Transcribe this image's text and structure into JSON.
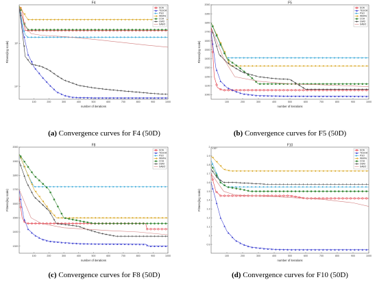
{
  "captions": [
    {
      "letter": "(a)",
      "text": " Convergence curves for F4 (50D)"
    },
    {
      "letter": "(b)",
      "text": " Convergence curves for F5 (50D)"
    },
    {
      "letter": "(c)",
      "text": " Convergence curves for F8 (50D)"
    },
    {
      "letter": "(d)",
      "text": " Convergence curves for F10 (50D)"
    }
  ],
  "legend_names": [
    "SOA",
    "TESOA",
    "PSO",
    "WMFA",
    "COA",
    "GWO",
    "SABO"
  ],
  "colors": {
    "SOA": "#e0303c",
    "TESOA": "#3a3fd0",
    "PSO": "#38a8d8",
    "WMFA": "#d8a41c",
    "COA": "#3a8a3a",
    "GWO": "#333333",
    "SABO": "#d07a7a"
  },
  "chart_data": [
    {
      "type": "line",
      "title": "F4",
      "xlabel": "number of iterations",
      "ylabel": "Fitness(log scale)",
      "xlim": [
        0,
        1000
      ],
      "yscale": "log",
      "ylim": [
        0.5,
        80
      ],
      "x_ticks": [
        100,
        200,
        300,
        400,
        500,
        600,
        700,
        800,
        900,
        1000
      ],
      "y_ticks": [
        {
          "v": 1,
          "label": "10⁰"
        },
        {
          "v": 10,
          "label": "10¹"
        }
      ],
      "series": [
        {
          "name": "SOA",
          "x": [
            0,
            20,
            40,
            1000
          ],
          "y": [
            75,
            60,
            20,
            20
          ]
        },
        {
          "name": "TESOA",
          "x": [
            0,
            30,
            60,
            100,
            150,
            200,
            250,
            300,
            350,
            400,
            500,
            600,
            700,
            800,
            900,
            1000
          ],
          "y": [
            70,
            16,
            5.5,
            2.8,
            1.7,
            1.1,
            0.75,
            0.62,
            0.56,
            0.55,
            0.54,
            0.54,
            0.54,
            0.54,
            0.54,
            0.54
          ]
        },
        {
          "name": "PSO",
          "x": [
            0,
            20,
            40,
            60,
            1000
          ],
          "y": [
            75,
            30,
            16,
            14,
            14
          ]
        },
        {
          "name": "WMFA",
          "x": [
            0,
            40,
            60,
            1000
          ],
          "y": [
            75,
            45,
            36,
            36
          ]
        },
        {
          "name": "COA",
          "x": [
            0,
            30,
            60,
            1000
          ],
          "y": [
            75,
            30,
            21,
            21
          ]
        },
        {
          "name": "GWO",
          "x": [
            0,
            20,
            40,
            80,
            150,
            200,
            250,
            300,
            400,
            500,
            600,
            700,
            800,
            900,
            1000
          ],
          "y": [
            70,
            20,
            5,
            3.3,
            2.9,
            2.4,
            1.8,
            1.4,
            1.05,
            0.92,
            0.84,
            0.78,
            0.73,
            0.68,
            0.65
          ]
        },
        {
          "name": "SABO",
          "x": [
            0,
            40,
            80,
            150,
            300,
            500,
            700,
            850,
            1000
          ],
          "y": [
            70,
            25,
            17,
            15.5,
            14.5,
            12.5,
            10.5,
            9.2,
            8.2
          ]
        }
      ]
    },
    {
      "type": "line",
      "title": "F5",
      "xlabel": "number of iterations",
      "ylabel": "Fitness(log scale)",
      "xlim": [
        0,
        1000
      ],
      "yscale": "linear",
      "ylim": [
        950,
        2000
      ],
      "x_ticks": [
        100,
        200,
        300,
        400,
        500,
        600,
        700,
        800,
        900,
        1000
      ],
      "y_ticks": [
        1000,
        1100,
        1200,
        1300,
        1400,
        1500,
        1600,
        1700,
        1800,
        1900,
        2000
      ],
      "series": [
        {
          "name": "SOA",
          "x": [
            0,
            20,
            40,
            60,
            80,
            1000
          ],
          "y": [
            1750,
            1200,
            1080,
            1060,
            1050,
            1050
          ]
        },
        {
          "name": "TESOA",
          "x": [
            0,
            30,
            60,
            100,
            150,
            200,
            300,
            500,
            700,
            1000
          ],
          "y": [
            1700,
            1300,
            1150,
            1080,
            1040,
            1010,
            990,
            985,
            983,
            982
          ]
        },
        {
          "name": "PSO",
          "x": [
            0,
            60,
            100,
            1000
          ],
          "y": [
            1800,
            1550,
            1410,
            1410
          ]
        },
        {
          "name": "WMFA",
          "x": [
            0,
            80,
            120,
            1000
          ],
          "y": [
            1800,
            1500,
            1320,
            1320
          ]
        },
        {
          "name": "COA",
          "x": [
            0,
            60,
            100,
            180,
            250,
            300,
            1000
          ],
          "y": [
            1800,
            1560,
            1400,
            1300,
            1200,
            1120,
            1120
          ]
        },
        {
          "name": "GWO",
          "x": [
            0,
            50,
            100,
            150,
            200,
            300,
            400,
            500,
            600,
            1000
          ],
          "y": [
            1750,
            1450,
            1360,
            1300,
            1250,
            1200,
            1180,
            1170,
            1060,
            1060
          ]
        },
        {
          "name": "SABO",
          "x": [
            0,
            80,
            150,
            300,
            500,
            700,
            1000
          ],
          "y": [
            1750,
            1400,
            1200,
            1150,
            1120,
            1110,
            1090
          ]
        }
      ]
    },
    {
      "type": "line",
      "title": "F8",
      "xlabel": "number of iterations",
      "ylabel": "Fitness(log scale)",
      "xlim": [
        0,
        1000
      ],
      "yscale": "linear",
      "ylim": [
        1250,
        2000
      ],
      "x_ticks": [
        100,
        200,
        300,
        400,
        500,
        600,
        700,
        800,
        900,
        1000
      ],
      "y_ticks": [
        1300,
        1400,
        1500,
        1600,
        1700,
        1800,
        1900,
        2000
      ],
      "series": [
        {
          "name": "SOA",
          "x": [
            0,
            20,
            40,
            60,
            850,
            860,
            1000
          ],
          "y": [
            1650,
            1500,
            1465,
            1460,
            1460,
            1420,
            1420
          ]
        },
        {
          "name": "TESOA",
          "x": [
            0,
            30,
            60,
            100,
            150,
            200,
            300,
            400,
            600,
            850,
            870,
            1000
          ],
          "y": [
            1700,
            1500,
            1420,
            1380,
            1350,
            1335,
            1325,
            1318,
            1315,
            1313,
            1300,
            1300
          ]
        },
        {
          "name": "PSO",
          "x": [
            0,
            60,
            100,
            1000
          ],
          "y": [
            1950,
            1800,
            1720,
            1720
          ]
        },
        {
          "name": "WMFA",
          "x": [
            0,
            100,
            200,
            250,
            1000
          ],
          "y": [
            1950,
            1700,
            1560,
            1500,
            1500
          ]
        },
        {
          "name": "COA",
          "x": [
            0,
            100,
            200,
            250,
            300,
            400,
            500,
            1000
          ],
          "y": [
            1950,
            1800,
            1700,
            1600,
            1500,
            1480,
            1460,
            1460
          ]
        },
        {
          "name": "GWO",
          "x": [
            0,
            50,
            100,
            200,
            250,
            400,
            450,
            550,
            650,
            1000
          ],
          "y": [
            1900,
            1750,
            1650,
            1550,
            1460,
            1440,
            1420,
            1390,
            1370,
            1370
          ]
        },
        {
          "name": "SABO",
          "x": [
            0,
            80,
            150,
            300,
            600,
            800,
            1000
          ],
          "y": [
            1700,
            1500,
            1460,
            1430,
            1410,
            1400,
            1380
          ]
        }
      ]
    },
    {
      "type": "line",
      "title": "F10",
      "xlabel": "number of iterations",
      "ylabel": "Fitness(log scale)",
      "xlim": [
        0,
        1000
      ],
      "yscale": "linear",
      "ylim": [
        0.8,
        2.0
      ],
      "x_ticks": [
        100,
        200,
        300,
        400,
        500,
        600,
        700,
        800,
        900,
        1000
      ],
      "y_ticks": [
        0.9,
        1.0,
        1.1,
        1.2,
        1.3,
        1.4,
        1.5,
        1.6,
        1.7,
        1.8,
        1.9,
        2.0
      ],
      "y_multiplier": "×10⁴",
      "series": [
        {
          "name": "SOA",
          "x": [
            0,
            30,
            60,
            100,
            500,
            600,
            1000
          ],
          "y": [
            1.7,
            1.5,
            1.45,
            1.45,
            1.45,
            1.42,
            1.42
          ]
        },
        {
          "name": "TESOA",
          "x": [
            0,
            30,
            60,
            100,
            150,
            200,
            250,
            300,
            350,
            400,
            500,
            700,
            1000
          ],
          "y": [
            1.6,
            1.4,
            1.2,
            1.05,
            0.95,
            0.9,
            0.87,
            0.86,
            0.85,
            0.845,
            0.84,
            0.84,
            0.84
          ]
        },
        {
          "name": "PSO",
          "x": [
            0,
            60,
            100,
            1000
          ],
          "y": [
            1.85,
            1.6,
            1.55,
            1.55
          ]
        },
        {
          "name": "WMFA",
          "x": [
            0,
            80,
            120,
            1000
          ],
          "y": [
            1.9,
            1.75,
            1.73,
            1.73
          ]
        },
        {
          "name": "COA",
          "x": [
            0,
            60,
            100,
            200,
            250,
            1000
          ],
          "y": [
            1.8,
            1.6,
            1.55,
            1.52,
            1.5,
            1.5
          ]
        },
        {
          "name": "GWO",
          "x": [
            0,
            40,
            80,
            150,
            250,
            350,
            1000
          ],
          "y": [
            1.75,
            1.65,
            1.6,
            1.6,
            1.59,
            1.58,
            1.58
          ]
        },
        {
          "name": "SABO",
          "x": [
            0,
            80,
            150,
            400,
            700,
            900,
            1000
          ],
          "y": [
            1.7,
            1.5,
            1.46,
            1.44,
            1.41,
            1.37,
            1.33
          ]
        }
      ]
    }
  ]
}
